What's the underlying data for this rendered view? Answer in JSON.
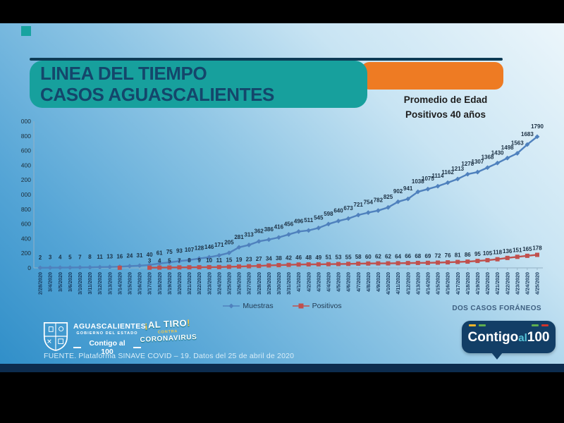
{
  "header": {
    "title_line1": "LINEA DEL TIEMPO",
    "title_line2": "CASOS AGUASCALIENTES",
    "promedio_line1": "Promedio de Edad",
    "promedio_line2": "Positivos 40 años"
  },
  "notes": {
    "foraneos": "DOS CASOS FORÁNEOS",
    "fuente": "FUENTE. Plataforma SINAVE COVID – 19. Datos del 25 de abril de 2020"
  },
  "logos": {
    "estado_name": "AGUASCALIENTES",
    "estado_sub": "GOBIERNO DEL ESTADO",
    "estado_slogan": "Contigo al 100",
    "campaign_excl_open": "¡",
    "campaign_top": "AL TIRO",
    "campaign_excl_close": "!",
    "campaign_mid": "contra",
    "campaign_bottom": "CORONAVIRUS",
    "badge_word1": "Contigo",
    "badge_word2": "al",
    "badge_word3": "100"
  },
  "colors": {
    "teal_banner": "#17a09d",
    "orange_banner": "#ee7b23",
    "navy": "#0d3b55",
    "muestras_blue": "#4f81bd",
    "positivos_red": "#c0504d",
    "badge_dash_yellow": "#f0b429",
    "badge_dash_green": "#5fae4e",
    "badge_dash_red": "#d0342c"
  },
  "chart_data": {
    "type": "line",
    "title": "Linea del tiempo casos Aguascalientes",
    "xlabel": "",
    "ylabel": "",
    "ylim": [
      0,
      2000
    ],
    "yticks": [
      0,
      200,
      400,
      600,
      800,
      1000,
      1200,
      1400,
      1600,
      1800,
      2000
    ],
    "grid": false,
    "legend_position": "bottom",
    "x": [
      "2/28/2020",
      "3/4/2020",
      "3/5/2020",
      "3/6/2020",
      "3/10/2020",
      "3/11/2020",
      "3/12/2020",
      "3/13/2020",
      "3/14/2020",
      "3/15/2020",
      "3/16/2020",
      "3/17/2020",
      "3/18/2020",
      "3/19/2020",
      "3/20/2020",
      "3/21/2020",
      "3/22/2020",
      "3/23/2020",
      "3/24/2020",
      "3/25/2020",
      "3/26/2020",
      "3/27/2020",
      "3/28/2020",
      "3/29/2020",
      "3/30/2020",
      "3/31/2020",
      "4/1/2020",
      "4/2/2020",
      "4/3/2020",
      "4/4/2020",
      "4/5/2020",
      "4/6/2020",
      "4/7/2020",
      "4/8/2020",
      "4/9/2020",
      "4/10/2020",
      "4/11/2020",
      "4/12/2020",
      "4/13/2020",
      "4/14/2020",
      "4/15/2020",
      "4/16/2020",
      "4/17/2020",
      "4/18/2020",
      "4/19/2020",
      "4/20/2020",
      "4/21/2020",
      "4/22/2020",
      "4/23/2020",
      "4/24/2020",
      "4/25/2020"
    ],
    "series": [
      {
        "name": "Muestras",
        "color": "#4f81bd",
        "marker": "diamond",
        "label_dy": -12,
        "hide_label_indices": [],
        "values": [
          2,
          3,
          4,
          5,
          7,
          8,
          11,
          13,
          16,
          24,
          31,
          40,
          61,
          75,
          93,
          107,
          128,
          146,
          171,
          205,
          281,
          313,
          362,
          386,
          416,
          456,
          496,
          511,
          545,
          598,
          640,
          673,
          721,
          754,
          782,
          825,
          902,
          941,
          1038,
          1075,
          1114,
          1162,
          1213,
          1278,
          1307,
          1368,
          1430,
          1498,
          1563,
          1683,
          1790
        ]
      },
      {
        "name": "Positivos",
        "color": "#c0504d",
        "marker": "square",
        "label_dy": -7,
        "hide_label_indices": [
          8
        ],
        "values": [
          null,
          null,
          null,
          null,
          null,
          null,
          null,
          null,
          2,
          null,
          null,
          3,
          4,
          5,
          7,
          8,
          9,
          10,
          11,
          15,
          19,
          23,
          27,
          34,
          38,
          42,
          46,
          48,
          49,
          51,
          53,
          55,
          58,
          60,
          62,
          62,
          64,
          66,
          68,
          69,
          72,
          76,
          81,
          86,
          95,
          105,
          118,
          136,
          151,
          165,
          178
        ]
      }
    ]
  }
}
